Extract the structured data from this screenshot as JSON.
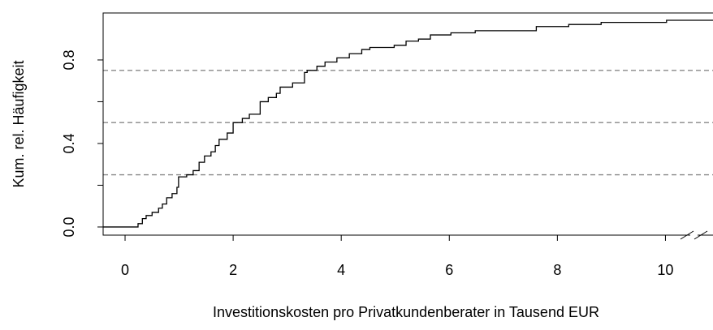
{
  "chart_data": {
    "type": "step",
    "xlabel": "Investitionskosten pro Privatkundenberater in Tausend EUR",
    "ylabel": "Kum. rel. Häufigkeit",
    "x": [
      0.17,
      0.24,
      0.32,
      0.39,
      0.5,
      0.62,
      0.69,
      0.77,
      0.87,
      0.96,
      0.99,
      1.14,
      1.26,
      1.37,
      1.47,
      1.59,
      1.67,
      1.74,
      1.89,
      2.0,
      2.17,
      2.3,
      2.5,
      2.65,
      2.8,
      2.87,
      3.1,
      3.32,
      3.37,
      3.55,
      3.7,
      3.92,
      4.15,
      4.38,
      4.53,
      4.98,
      5.2,
      5.43,
      5.65,
      6.03,
      6.48,
      7.61,
      8.21,
      8.81,
      10.02
    ],
    "values": [
      0,
      0.016,
      0.04,
      0.055,
      0.07,
      0.09,
      0.11,
      0.14,
      0.16,
      0.19,
      0.24,
      0.25,
      0.27,
      0.31,
      0.34,
      0.36,
      0.39,
      0.42,
      0.45,
      0.5,
      0.52,
      0.54,
      0.6,
      0.62,
      0.64,
      0.67,
      0.69,
      0.74,
      0.75,
      0.77,
      0.79,
      0.81,
      0.83,
      0.85,
      0.86,
      0.87,
      0.89,
      0.9,
      0.92,
      0.93,
      0.94,
      0.96,
      0.97,
      0.98,
      0.99
    ],
    "color": "#000000",
    "hlines": [
      0.25,
      0.5,
      0.75
    ],
    "hline_color": "#888888",
    "xlim": [
      -0.406,
      10.88
    ],
    "ylim": [
      -0.039,
      1.025
    ],
    "xticks": [
      0,
      2,
      4,
      6,
      8,
      10
    ],
    "yticks": [
      {
        "value": 0,
        "label": "0.0"
      },
      0.4,
      {
        "value": 0.8,
        "label": "0.8"
      }
    ],
    "yminor_ticks": [
      0.2,
      0.6
    ]
  }
}
